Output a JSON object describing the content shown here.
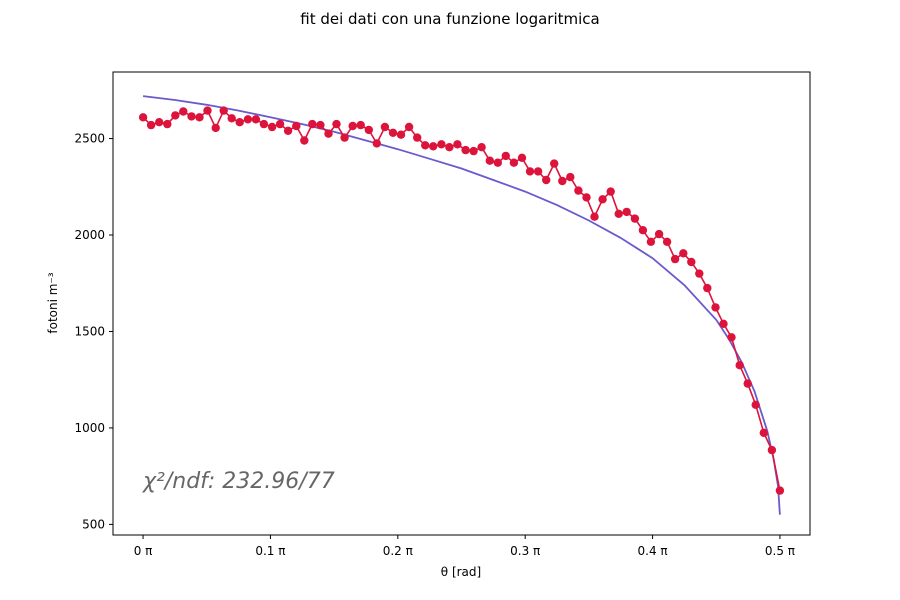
{
  "chart_data": {
    "type": "line",
    "title": "fit dei dati con una funzione logaritmica",
    "xlabel": "θ [rad]",
    "ylabel": "fotoni m⁻³",
    "xlim": [
      -0.0236,
      0.5236
    ],
    "ylim": [
      445,
      2845
    ],
    "x_ticks": [
      {
        "value": 0.0,
        "label": "0 π"
      },
      {
        "value": 0.1,
        "label": "0.1 π"
      },
      {
        "value": 0.2,
        "label": "0.2 π"
      },
      {
        "value": 0.3,
        "label": "0.3 π"
      },
      {
        "value": 0.4,
        "label": "0.4 π"
      },
      {
        "value": 0.5,
        "label": "0.5 π"
      }
    ],
    "y_ticks": [
      {
        "value": 500,
        "label": "500"
      },
      {
        "value": 1000,
        "label": "1000"
      },
      {
        "value": 1500,
        "label": "1500"
      },
      {
        "value": 2000,
        "label": "2000"
      },
      {
        "value": 2500,
        "label": "2500"
      }
    ],
    "grid": false,
    "annotation": "χ²/ndf: 232.96/77",
    "colors": {
      "data": "#dc143c",
      "fit": "#6a5acd"
    },
    "series": [
      {
        "kind": "data",
        "style": "line-markers",
        "x": [
          0.0,
          0.0063,
          0.0127,
          0.019,
          0.0253,
          0.0316,
          0.038,
          0.0443,
          0.0506,
          0.057,
          0.0633,
          0.0696,
          0.0759,
          0.0823,
          0.0886,
          0.0949,
          0.1013,
          0.1076,
          0.1139,
          0.1203,
          0.1266,
          0.1329,
          0.1392,
          0.1456,
          0.1519,
          0.1582,
          0.1646,
          0.1709,
          0.1772,
          0.1835,
          0.1899,
          0.1962,
          0.2025,
          0.2089,
          0.2152,
          0.2215,
          0.2278,
          0.2342,
          0.2405,
          0.2468,
          0.2532,
          0.2595,
          0.2658,
          0.2722,
          0.2785,
          0.2848,
          0.2911,
          0.2975,
          0.3038,
          0.3101,
          0.3165,
          0.3228,
          0.3291,
          0.3354,
          0.3418,
          0.3481,
          0.3544,
          0.3608,
          0.3671,
          0.3734,
          0.3797,
          0.3861,
          0.3924,
          0.3987,
          0.4051,
          0.4114,
          0.4177,
          0.4241,
          0.4304,
          0.4367,
          0.443,
          0.4494,
          0.4557,
          0.462,
          0.4684,
          0.4747,
          0.481,
          0.4873,
          0.4937,
          0.5
        ],
        "y": [
          2610,
          2570,
          2585,
          2575,
          2620,
          2640,
          2615,
          2610,
          2645,
          2555,
          2645,
          2605,
          2585,
          2600,
          2600,
          2575,
          2560,
          2575,
          2540,
          2565,
          2490,
          2575,
          2570,
          2525,
          2575,
          2505,
          2565,
          2570,
          2545,
          2475,
          2560,
          2530,
          2520,
          2560,
          2505,
          2465,
          2460,
          2470,
          2455,
          2470,
          2440,
          2435,
          2455,
          2385,
          2375,
          2410,
          2375,
          2400,
          2330,
          2330,
          2285,
          2370,
          2280,
          2300,
          2230,
          2195,
          2095,
          2185,
          2225,
          2110,
          2120,
          2085,
          2025,
          1965,
          2005,
          1965,
          1875,
          1905,
          1860,
          1800,
          1725,
          1625,
          1540,
          1470,
          1325,
          1230,
          1120,
          975,
          885,
          675
        ]
      },
      {
        "kind": "fit",
        "style": "line",
        "x": [
          0.0,
          0.025,
          0.05,
          0.075,
          0.1,
          0.125,
          0.15,
          0.175,
          0.2,
          0.225,
          0.25,
          0.275,
          0.3,
          0.325,
          0.35,
          0.375,
          0.4,
          0.425,
          0.45,
          0.46,
          0.47,
          0.48,
          0.49,
          0.495,
          0.4985,
          0.5
        ],
        "y": [
          2720,
          2700,
          2675,
          2645,
          2610,
          2575,
          2535,
          2490,
          2445,
          2395,
          2345,
          2285,
          2225,
          2155,
          2075,
          1985,
          1880,
          1740,
          1560,
          1460,
          1340,
          1190,
          985,
          840,
          700,
          550
        ]
      }
    ]
  }
}
